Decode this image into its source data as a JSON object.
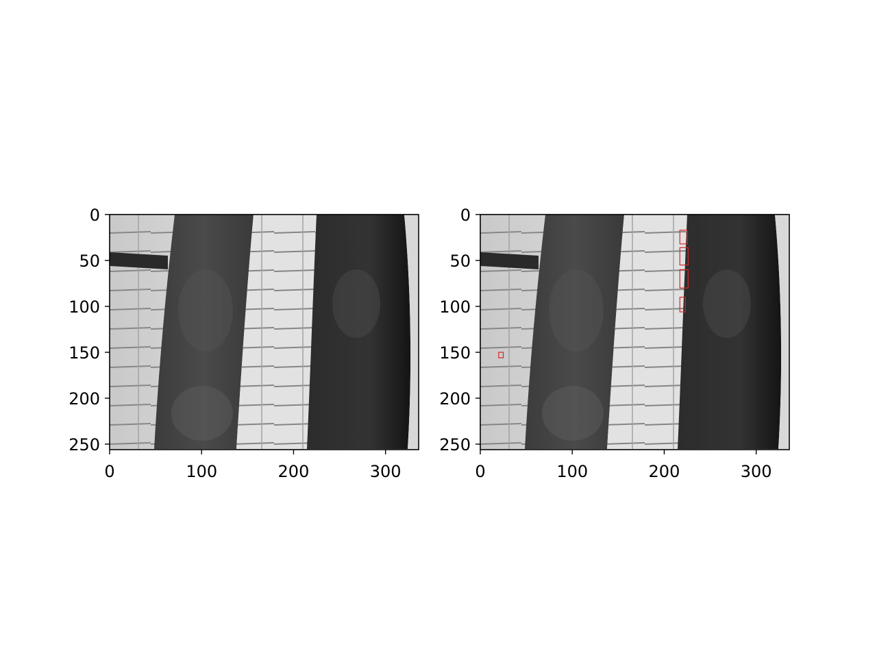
{
  "chart_data": [
    {
      "type": "image",
      "title": "",
      "xlabel": "",
      "ylabel": "",
      "xlim": [
        0,
        336
      ],
      "ylim": [
        256,
        0
      ],
      "x_ticks": [
        "0",
        "100",
        "200",
        "300"
      ],
      "y_ticks": [
        "0",
        "50",
        "100",
        "150",
        "200",
        "250"
      ],
      "x_tick_values": [
        0,
        100,
        200,
        300
      ],
      "y_tick_values": [
        0,
        50,
        100,
        150,
        200,
        250
      ],
      "boxes": []
    },
    {
      "type": "image",
      "title": "",
      "xlabel": "",
      "ylabel": "",
      "xlim": [
        0,
        336
      ],
      "ylim": [
        256,
        0
      ],
      "x_ticks": [
        "0",
        "100",
        "200",
        "300"
      ],
      "y_ticks": [
        "0",
        "50",
        "100",
        "150",
        "200",
        "250"
      ],
      "x_tick_values": [
        0,
        100,
        200,
        300
      ],
      "y_tick_values": [
        0,
        50,
        100,
        150,
        200,
        250
      ],
      "box_color": "#d62728",
      "boxes": [
        {
          "x0": 217,
          "y0": 17,
          "x1": 225,
          "y1": 32
        },
        {
          "x0": 217,
          "y0": 36,
          "x1": 226,
          "y1": 55
        },
        {
          "x0": 217,
          "y0": 60,
          "x1": 226,
          "y1": 80
        },
        {
          "x0": 217,
          "y0": 90,
          "x1": 223,
          "y1": 106
        },
        {
          "x0": 20,
          "y0": 150,
          "x1": 25,
          "y1": 156
        }
      ]
    }
  ]
}
